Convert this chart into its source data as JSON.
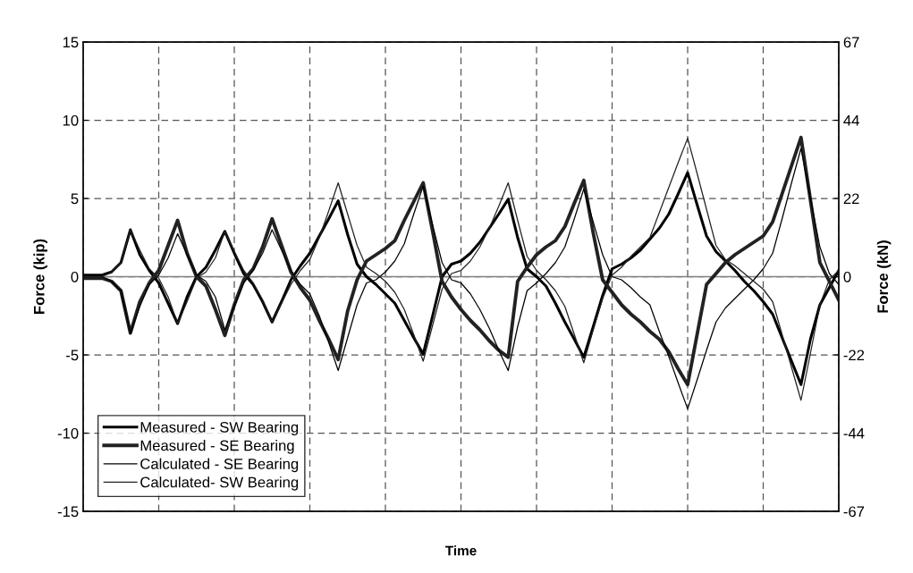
{
  "chart_data": {
    "type": "line",
    "xlabel": "Time",
    "ylabel": "Force (kip)",
    "y2label": "Force (kN)",
    "categories": [
      null,
      null,
      null,
      null,
      null,
      null,
      null,
      null,
      null,
      null,
      null,
      null,
      null,
      null,
      null,
      null,
      null,
      null,
      null,
      null,
      null,
      null,
      null,
      null,
      null,
      null,
      null,
      null,
      null,
      null,
      null,
      null,
      null,
      null,
      null,
      null,
      null,
      null,
      null,
      null,
      null,
      null,
      null,
      null,
      null,
      null,
      null,
      null,
      null,
      null,
      null,
      null,
      null,
      null,
      null,
      null,
      null,
      null,
      null,
      null,
      null,
      null,
      null,
      null,
      null,
      null,
      null,
      null,
      null,
      null,
      null,
      null,
      null,
      null,
      null,
      null,
      null,
      null,
      null,
      null,
      null
    ],
    "ylim": [
      -15,
      15
    ],
    "yticks": [
      -15,
      -10,
      -5,
      0,
      5,
      10,
      15
    ],
    "y2lim": [
      -66.72,
      66.72
    ],
    "y2ticks": [
      {
        "value": -66.72,
        "label": "-67"
      },
      {
        "value": -44.48,
        "label": "-44"
      },
      {
        "value": -22.24,
        "label": "-22"
      },
      0,
      {
        "value": 22.24,
        "label": "22"
      },
      {
        "value": 44.48,
        "label": "44"
      },
      {
        "value": 66.72,
        "label": "67"
      }
    ],
    "grid": true,
    "legend": "bottom left",
    "marker": "none",
    "line_style": "solid",
    "ref_lines": [
      {
        "axis": "y",
        "value": 0,
        "color": "#808080"
      }
    ],
    "series": [
      {
        "name": "Measured - SW Bearing",
        "color": "#000000",
        "values": [
          0.1,
          0.1,
          0.1,
          0.3,
          0.9,
          3.0,
          1.4,
          0.4,
          -0.4,
          -1.7,
          -3.0,
          -1.3,
          0.0,
          0.6,
          1.7,
          2.9,
          1.5,
          0.2,
          -0.5,
          -1.6,
          -2.9,
          -1.6,
          -0.2,
          0.7,
          1.5,
          2.6,
          3.7,
          4.85,
          2.7,
          0.8,
          0,
          -0.5,
          -1.1,
          -1.7,
          -2.8,
          -3.9,
          -4.95,
          -2.5,
          0.0,
          0.8,
          1.0,
          1.5,
          2.2,
          3.1,
          4.0,
          4.95,
          2.5,
          0.5,
          0.0,
          -0.6,
          -1.7,
          -2.9,
          -4.0,
          -5.15,
          -3.2,
          -1.2,
          0.5,
          0.8,
          1.2,
          1.7,
          2.4,
          3.1,
          4.0,
          5.3,
          6.65,
          4.6,
          2.6,
          1.6,
          1.0,
          0.4,
          -0.3,
          -0.9,
          -1.6,
          -2.4,
          -3.9,
          -5.4,
          -6.9,
          -4.0,
          -1.8,
          -0.7,
          0.4
        ]
      },
      {
        "name": "Measured - SE Bearing",
        "color": "#222222",
        "values": [
          -0.1,
          -0.1,
          -0.1,
          -0.3,
          -0.9,
          -3.6,
          -1.6,
          -0.4,
          0.4,
          2.0,
          3.6,
          1.5,
          0.0,
          -0.6,
          -2.1,
          -3.75,
          -1.8,
          -0.2,
          0.5,
          1.9,
          3.7,
          2.0,
          0.3,
          -0.7,
          -1.5,
          -2.8,
          -4.0,
          -5.3,
          -2.2,
          -0.2,
          1.0,
          1.4,
          1.8,
          2.3,
          3.6,
          4.8,
          6.0,
          2.9,
          -0.3,
          -1.3,
          -2.1,
          -2.8,
          -3.4,
          -4.1,
          -4.7,
          -5.15,
          -0.3,
          0.6,
          1.4,
          1.9,
          2.3,
          3.2,
          4.7,
          6.15,
          2.8,
          -0.2,
          -1.0,
          -1.8,
          -2.4,
          -2.9,
          -3.5,
          -4.0,
          -4.8,
          -5.9,
          -6.9,
          -3.7,
          -0.5,
          0.2,
          0.9,
          1.4,
          1.8,
          2.2,
          2.6,
          3.5,
          5.3,
          7.1,
          8.9,
          4.9,
          0.9,
          -0.3,
          -1.5
        ]
      },
      {
        "name": "Calculated - SE Bearing",
        "color": "#000000",
        "values": [
          0,
          0,
          0,
          -0.3,
          -0.9,
          -3.6,
          -1.9,
          -0.5,
          0.1,
          1.2,
          2.75,
          1.4,
          0.1,
          -0.3,
          -1.3,
          -3.4,
          -1.9,
          -0.4,
          0.4,
          1.5,
          3.0,
          1.7,
          0.4,
          -0.5,
          -1.1,
          -2.5,
          -4.2,
          -6.0,
          -3.9,
          -1.8,
          -0.4,
          -0.2,
          0.3,
          1.0,
          2.1,
          4.0,
          5.8,
          3.3,
          0.9,
          -0.2,
          -0.4,
          -1.1,
          -2.1,
          -3.3,
          -4.7,
          -6.0,
          -3.2,
          -0.9,
          -0.4,
          0.2,
          0.9,
          1.9,
          3.7,
          5.6,
          3.5,
          1.4,
          0.0,
          -0.2,
          -0.7,
          -1.3,
          -1.8,
          -3.5,
          -5.1,
          -6.8,
          -8.45,
          -6.6,
          -4.7,
          -2.9,
          -2.0,
          -1.4,
          -0.8,
          -0.2,
          0.5,
          1.5,
          3.7,
          6.0,
          8.2,
          5.0,
          1.9,
          0.2,
          -0.5
        ]
      },
      {
        "name": "Calculated- SW Bearing",
        "color": "#222222",
        "values": [
          0,
          0,
          0,
          0.3,
          0.9,
          3.0,
          1.7,
          0.5,
          -0.1,
          -1.3,
          -3.0,
          -1.6,
          -0.1,
          0.3,
          1.2,
          2.9,
          1.6,
          0.4,
          -0.4,
          -1.5,
          -2.9,
          -1.7,
          -0.5,
          0.4,
          1.1,
          2.5,
          4.2,
          6.0,
          4.0,
          2.0,
          0.6,
          0.2,
          -0.3,
          -1.0,
          -2.1,
          -3.7,
          -5.4,
          -3.1,
          -0.8,
          0.2,
          0.4,
          1.0,
          1.9,
          3.1,
          4.5,
          6.0,
          3.6,
          1.3,
          0.4,
          -0.2,
          -0.9,
          -1.9,
          -3.7,
          -5.5,
          -3.4,
          -1.4,
          0.1,
          0.6,
          1.3,
          1.9,
          2.5,
          4.1,
          5.7,
          7.3,
          8.85,
          6.6,
          4.3,
          2.0,
          1.1,
          0.7,
          0.2,
          -0.3,
          -0.8,
          -1.6,
          -3.7,
          -5.8,
          -7.9,
          -4.9,
          -1.8,
          -0.2,
          0.4
        ]
      }
    ]
  }
}
